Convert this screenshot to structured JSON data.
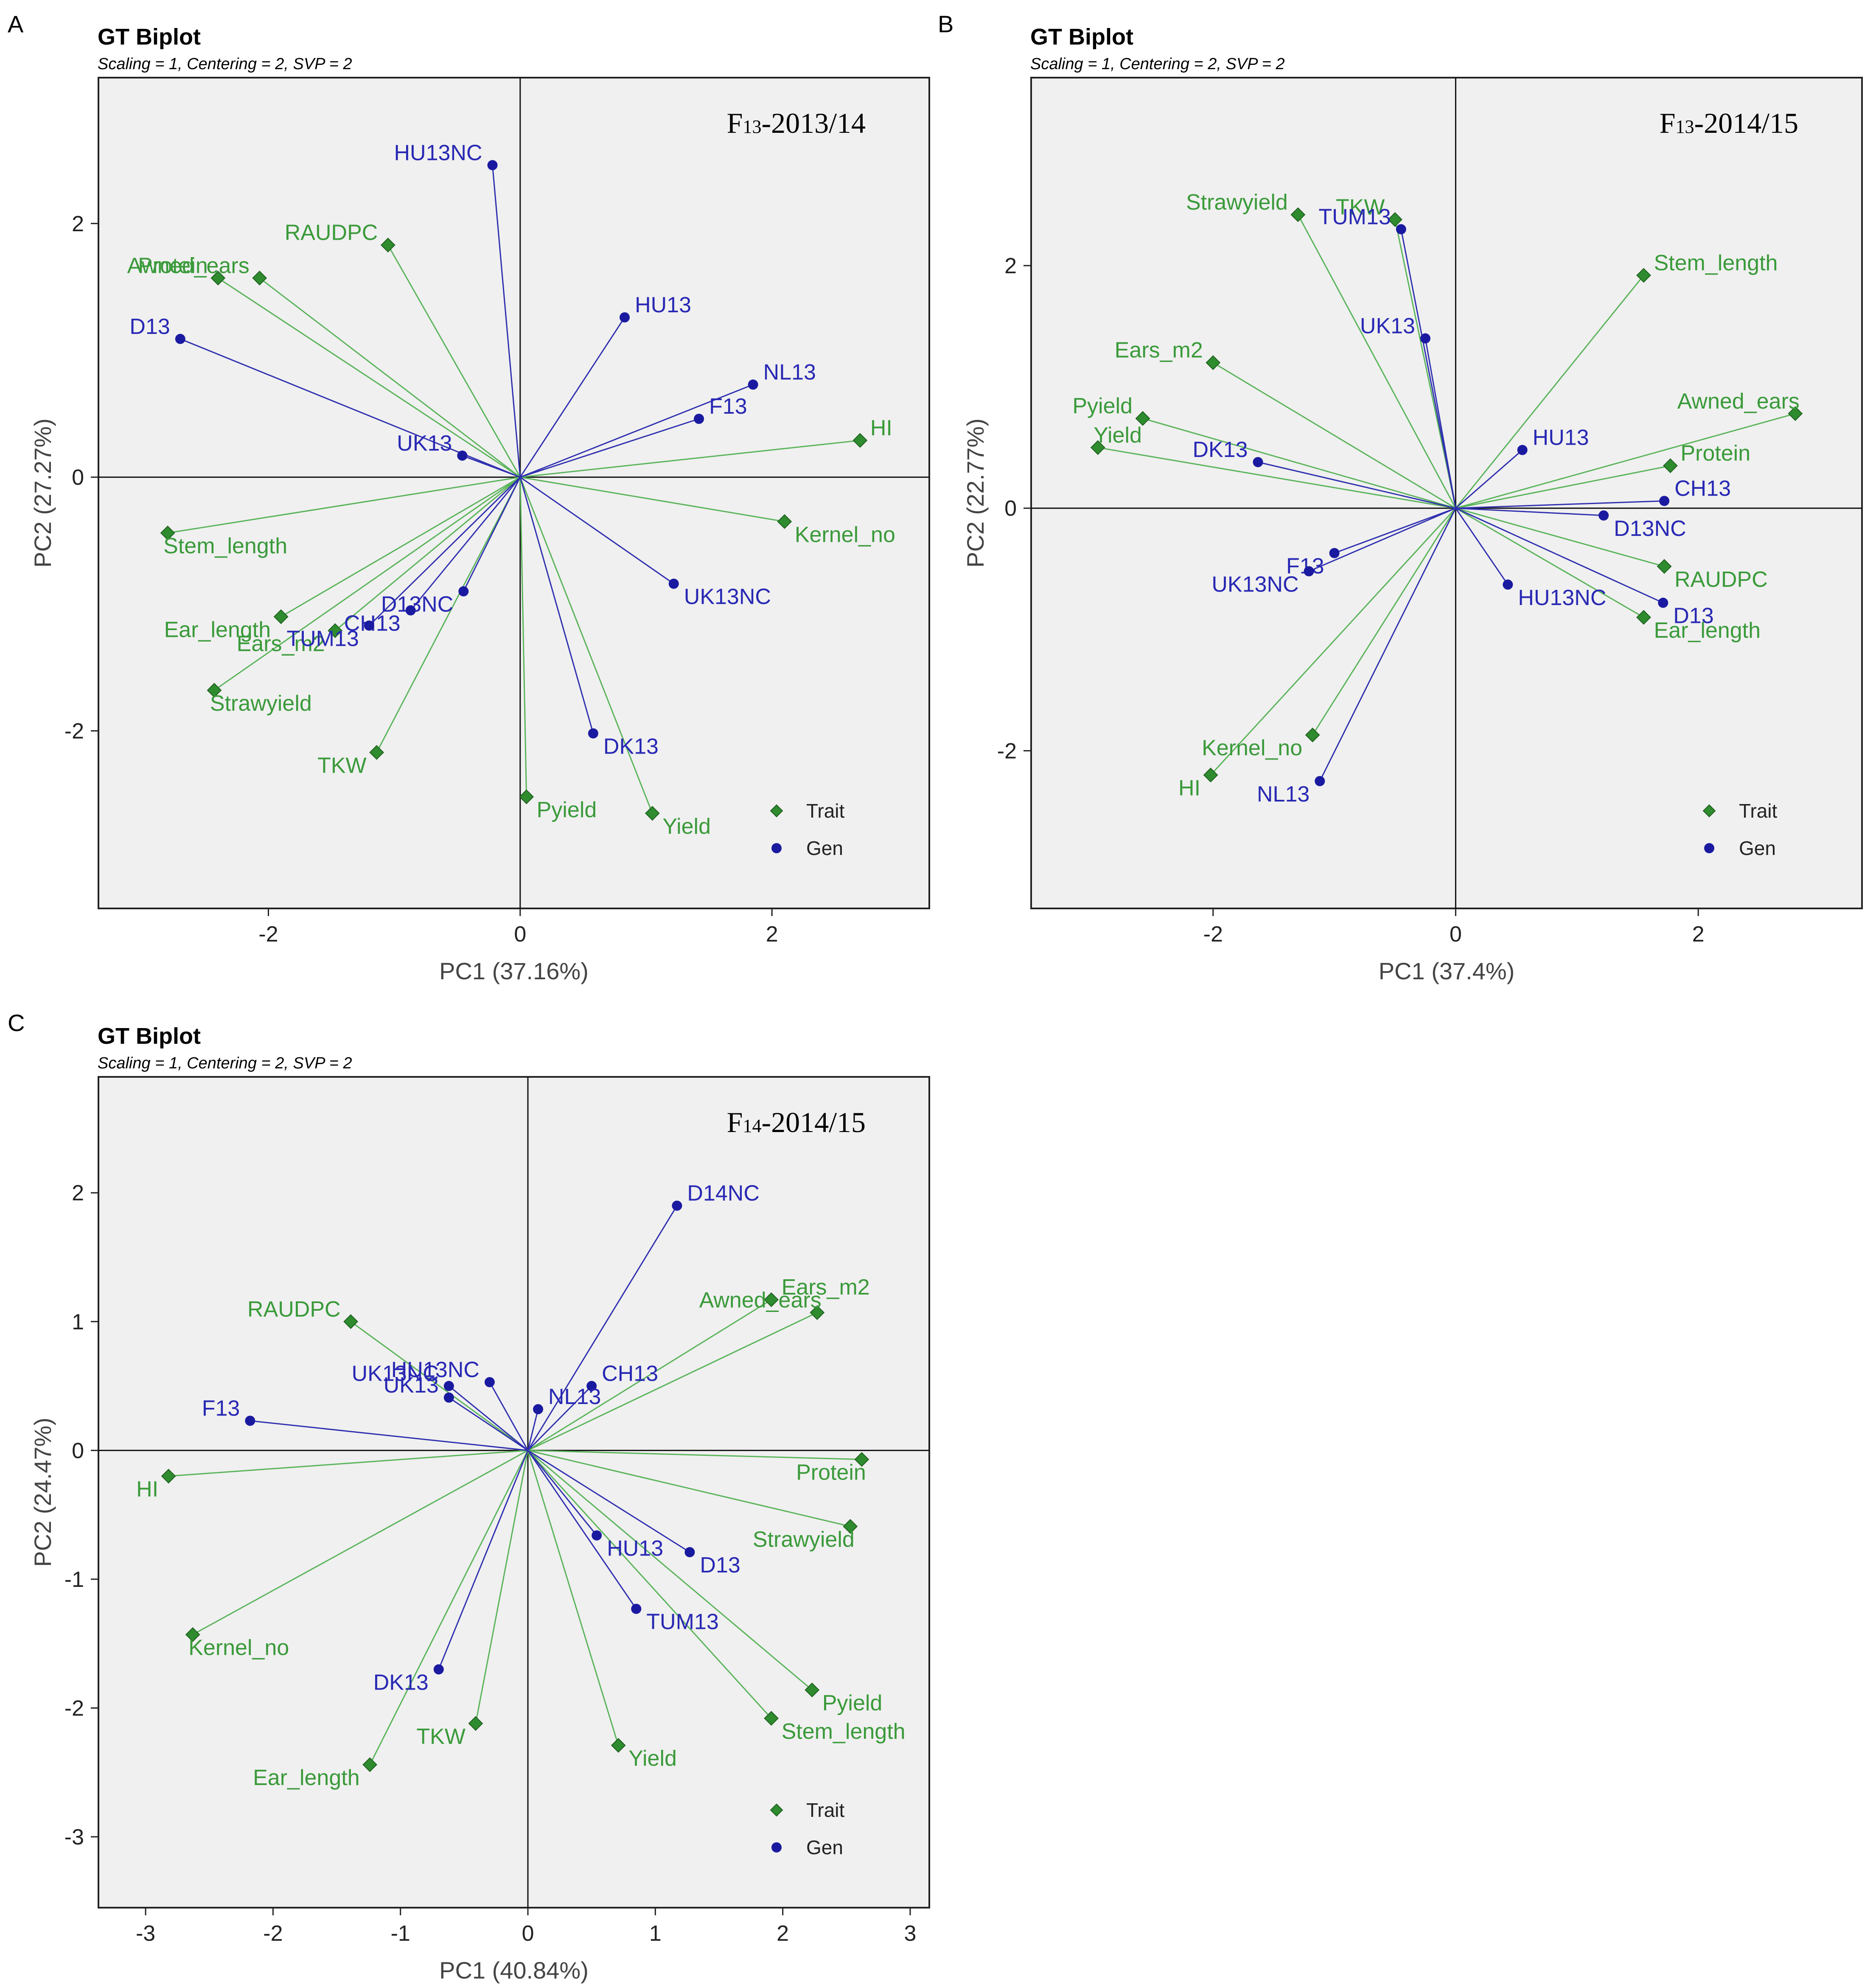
{
  "figure": {
    "panel_letters": [
      "A",
      "B",
      "C"
    ]
  },
  "chart_data": [
    {
      "type": "scatter",
      "panel": "A",
      "title": "GT Biplot",
      "subtitle": "Scaling = 1, Centering = 2, SVP = 2",
      "tag": "F13-2013/14",
      "xlabel": "PC1 (37.16%)",
      "ylabel": "PC2 (27.27%)",
      "xlim": [
        -3.35,
        3.25
      ],
      "ylim": [
        -3.4,
        3.15
      ],
      "xticks": [
        -2,
        0,
        2
      ],
      "yticks": [
        -2,
        0,
        2
      ],
      "legend": {
        "position": "bottom-right",
        "items": [
          "Trait",
          "Gen"
        ]
      },
      "colors": {
        "trait": "#3a9a3a",
        "gen": "#2828b4",
        "trait_line": "#5ab45a",
        "gen_line": "#3030b0",
        "background": "#f0f0f0"
      },
      "traits": [
        {
          "name": "RAUDPC",
          "x": -1.05,
          "y": 1.83
        },
        {
          "name": "Protein",
          "x": -2.4,
          "y": 1.57
        },
        {
          "name": "Awned_ears",
          "x": -2.07,
          "y": 1.57
        },
        {
          "name": "HI",
          "x": 2.7,
          "y": 0.29
        },
        {
          "name": "Kernel_no",
          "x": 2.1,
          "y": -0.35
        },
        {
          "name": "Stem_length",
          "x": -2.8,
          "y": -0.44
        },
        {
          "name": "Ear_length",
          "x": -1.9,
          "y": -1.1
        },
        {
          "name": "Ears_m2",
          "x": -1.47,
          "y": -1.21
        },
        {
          "name": "Strawyield",
          "x": -2.43,
          "y": -1.68
        },
        {
          "name": "TKW",
          "x": -1.14,
          "y": -2.17
        },
        {
          "name": "Pyield",
          "x": 0.05,
          "y": -2.52
        },
        {
          "name": "Yield",
          "x": 1.05,
          "y": -2.65
        }
      ],
      "genotypes": [
        {
          "name": "HU13NC",
          "x": -0.22,
          "y": 2.46
        },
        {
          "name": "HU13",
          "x": 0.83,
          "y": 1.26
        },
        {
          "name": "NL13",
          "x": 1.85,
          "y": 0.73
        },
        {
          "name": "F13",
          "x": 1.42,
          "y": 0.46
        },
        {
          "name": "D13",
          "x": -2.7,
          "y": 1.09
        },
        {
          "name": "UK13",
          "x": -0.46,
          "y": 0.17
        },
        {
          "name": "D13NC",
          "x": -0.45,
          "y": -0.9
        },
        {
          "name": "CH13",
          "x": -0.87,
          "y": -1.05
        },
        {
          "name": "TUM13",
          "x": -1.2,
          "y": -1.17
        },
        {
          "name": "UK13NC",
          "x": 1.22,
          "y": -0.84
        },
        {
          "name": "DK13",
          "x": 0.58,
          "y": -2.02
        }
      ]
    },
    {
      "type": "scatter",
      "panel": "B",
      "title": "GT Biplot",
      "subtitle": "Scaling = 1, Centering = 2, SVP = 2",
      "tag": "F13-2014/15",
      "xlabel": "PC1 (37.4%)",
      "ylabel": "PC2 (22.77%)",
      "xlim": [
        -3.5,
        3.35
      ],
      "ylim": [
        -3.3,
        3.55
      ],
      "xticks": [
        -2,
        0,
        2
      ],
      "yticks": [
        -2,
        0,
        2
      ],
      "legend": {
        "position": "bottom-right",
        "items": [
          "Trait",
          "Gen"
        ]
      },
      "colors": {
        "trait": "#3a9a3a",
        "gen": "#2828b4",
        "trait_line": "#5ab45a",
        "gen_line": "#3030b0",
        "background": "#f0f0f0"
      },
      "traits": [
        {
          "name": "Strawyield",
          "x": -1.3,
          "y": 2.42
        },
        {
          "name": "TKW",
          "x": -0.5,
          "y": 2.38
        },
        {
          "name": "Stem_length",
          "x": 1.55,
          "y": 1.92
        },
        {
          "name": "Ears_m2",
          "x": -2.0,
          "y": 1.2
        },
        {
          "name": "Pyield",
          "x": -2.58,
          "y": 0.74
        },
        {
          "name": "Yield",
          "x": -2.95,
          "y": 0.5
        },
        {
          "name": "Awned_ears",
          "x": 2.8,
          "y": 0.78
        },
        {
          "name": "Protein",
          "x": 1.77,
          "y": 0.35
        },
        {
          "name": "RAUDPC",
          "x": 1.72,
          "y": -0.48
        },
        {
          "name": "Ear_length",
          "x": 1.55,
          "y": -0.9
        },
        {
          "name": "HI",
          "x": -2.02,
          "y": -2.2
        },
        {
          "name": "Kernel_no",
          "x": -1.18,
          "y": -1.87
        }
      ],
      "genotypes": [
        {
          "name": "TUM13",
          "x": -0.45,
          "y": 2.3
        },
        {
          "name": "UK13",
          "x": -0.25,
          "y": 1.4
        },
        {
          "name": "DK13",
          "x": -1.63,
          "y": 0.38
        },
        {
          "name": "HU13",
          "x": 0.55,
          "y": 0.48
        },
        {
          "name": "CH13",
          "x": 1.72,
          "y": 0.06
        },
        {
          "name": "D13NC",
          "x": 1.22,
          "y": -0.06
        },
        {
          "name": "D13",
          "x": 1.71,
          "y": -0.78
        },
        {
          "name": "HU13NC",
          "x": 0.43,
          "y": -0.63
        },
        {
          "name": "F13",
          "x": -1.0,
          "y": -0.37
        },
        {
          "name": "UK13NC",
          "x": -1.21,
          "y": -0.52
        },
        {
          "name": "NL13",
          "x": -1.12,
          "y": -2.25
        }
      ]
    },
    {
      "type": "scatter",
      "panel": "C",
      "title": "GT Biplot",
      "subtitle": "Scaling = 1, Centering = 2, SVP = 2",
      "tag": "F14-2014/15",
      "xlabel": "PC1 (40.84%)",
      "ylabel": "PC2 (24.47%)",
      "xlim": [
        -3.37,
        3.15
      ],
      "ylim": [
        -3.55,
        2.9
      ],
      "xticks": [
        -3,
        -2,
        -1,
        0,
        1,
        2,
        3
      ],
      "yticks": [
        -3,
        -2,
        -1,
        0,
        1,
        2
      ],
      "legend": {
        "position": "bottom-right",
        "items": [
          "Trait",
          "Gen"
        ]
      },
      "colors": {
        "trait": "#3a9a3a",
        "gen": "#2828b4",
        "trait_line": "#5ab45a",
        "gen_line": "#3030b0",
        "background": "#f0f0f0"
      },
      "traits": [
        {
          "name": "Ears_m2",
          "x": 1.91,
          "y": 1.17
        },
        {
          "name": "Awned_ears",
          "x": 2.27,
          "y": 1.07
        },
        {
          "name": "RAUDPC",
          "x": -1.39,
          "y": 1.0
        },
        {
          "name": "Protein",
          "x": 2.62,
          "y": -0.07
        },
        {
          "name": "HI",
          "x": -2.82,
          "y": -0.2
        },
        {
          "name": "Strawyield",
          "x": 2.53,
          "y": -0.59
        },
        {
          "name": "Kernel_no",
          "x": -2.63,
          "y": -1.43
        },
        {
          "name": "Pyield",
          "x": 2.23,
          "y": -1.86
        },
        {
          "name": "Stem_length",
          "x": 1.91,
          "y": -2.08
        },
        {
          "name": "Yield",
          "x": 0.71,
          "y": -2.29
        },
        {
          "name": "TKW",
          "x": -0.41,
          "y": -2.12
        },
        {
          "name": "Ear_length",
          "x": -1.24,
          "y": -2.44
        }
      ],
      "genotypes": [
        {
          "name": "D14NC",
          "x": 1.17,
          "y": 1.9
        },
        {
          "name": "CH13",
          "x": 0.5,
          "y": 0.5
        },
        {
          "name": "HU13NC",
          "x": -0.3,
          "y": 0.53
        },
        {
          "name": "UK13NC",
          "x": -0.62,
          "y": 0.5
        },
        {
          "name": "UK13",
          "x": -0.62,
          "y": 0.41
        },
        {
          "name": "NL13",
          "x": 0.08,
          "y": 0.32
        },
        {
          "name": "F13",
          "x": -2.18,
          "y": 0.23
        },
        {
          "name": "D13",
          "x": 1.27,
          "y": -0.79
        },
        {
          "name": "HU13",
          "x": 0.54,
          "y": -0.66
        },
        {
          "name": "TUM13",
          "x": 0.85,
          "y": -1.23
        },
        {
          "name": "DK13",
          "x": -0.7,
          "y": -1.7
        }
      ]
    }
  ]
}
